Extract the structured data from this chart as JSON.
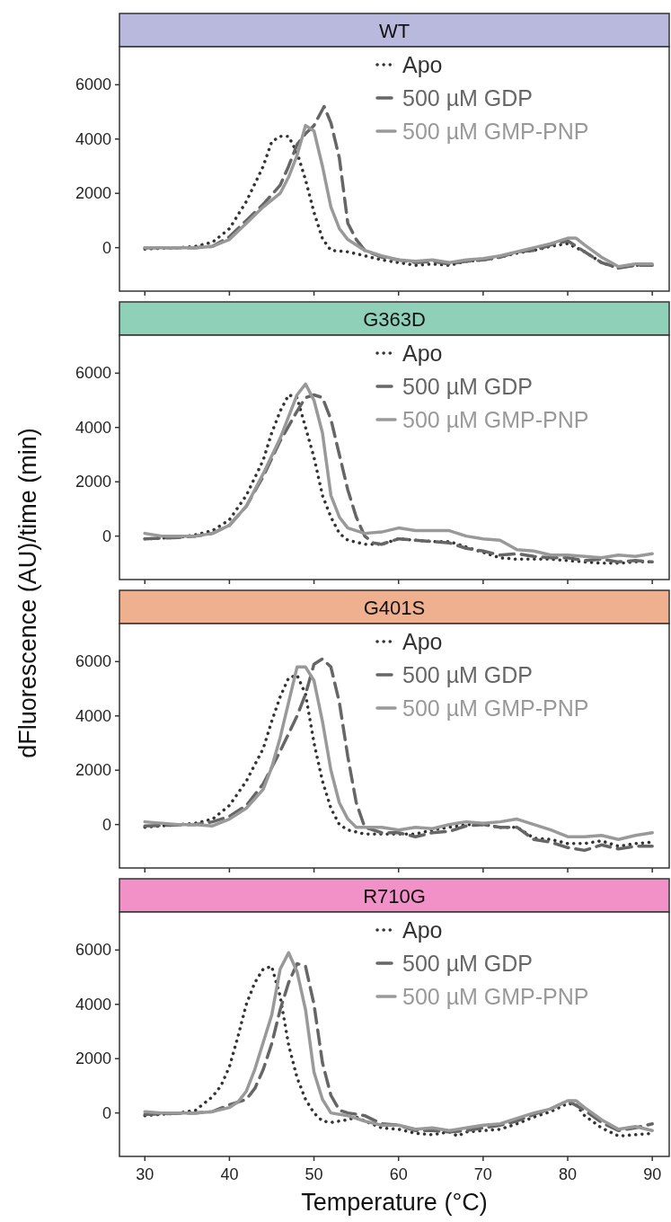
{
  "chart_data": [
    {
      "type": "line",
      "title": "WT",
      "ylabel": "dFluorescence (AU)/time (min)",
      "xlim": [
        27,
        92
      ],
      "xticks": [
        30,
        40,
        50,
        60,
        70,
        80,
        90
      ],
      "ylim": [
        -1600,
        7400
      ],
      "yticks": [
        0,
        2000,
        4000,
        6000
      ],
      "tick_labels": "y",
      "legend": "top right",
      "grid": false,
      "series": [
        {
          "name": "Apo",
          "color": "#333333",
          "line_style": "dotted",
          "x": [
            30,
            34,
            36,
            38,
            40,
            42,
            44,
            45,
            46,
            47,
            48,
            49,
            50,
            51,
            52,
            54,
            56,
            58,
            60,
            62,
            64,
            66,
            68,
            70,
            72,
            74,
            76,
            78,
            80,
            82,
            84,
            86,
            88,
            90
          ],
          "values": [
            -50,
            0,
            50,
            200,
            700,
            1700,
            3000,
            3900,
            4100,
            4100,
            3500,
            2500,
            1300,
            330,
            -100,
            -150,
            -300,
            -450,
            -550,
            -650,
            -600,
            -650,
            -500,
            -450,
            -350,
            -200,
            -100,
            50,
            150,
            -150,
            -550,
            -750,
            -650,
            -650
          ]
        },
        {
          "name": "500 µM GDP",
          "color": "#666666",
          "line_style": "dashed",
          "x": [
            30,
            36,
            38,
            40,
            42,
            44,
            46,
            47,
            48,
            49,
            50,
            51.2,
            52,
            53,
            54,
            55,
            56,
            58,
            60,
            62,
            64,
            66,
            68,
            70,
            72,
            74,
            76,
            78,
            80,
            82,
            84,
            86,
            88,
            90
          ],
          "values": [
            0,
            0,
            50,
            400,
            1000,
            1600,
            2300,
            3000,
            3800,
            4200,
            4500,
            5200,
            4600,
            3300,
            900,
            300,
            -100,
            -350,
            -450,
            -550,
            -500,
            -600,
            -500,
            -450,
            -350,
            -150,
            -100,
            100,
            250,
            -150,
            -550,
            -750,
            -650,
            -650
          ]
        },
        {
          "name": "500 µM GMP-PNP",
          "color": "#999999",
          "line_style": "solid",
          "x": [
            30,
            36,
            38,
            40,
            42,
            44,
            46,
            47,
            48,
            49,
            50,
            51,
            52,
            53,
            54,
            56,
            58,
            60,
            62,
            64,
            66,
            68,
            70,
            72,
            74,
            76,
            78,
            80,
            81,
            82,
            84,
            86,
            88,
            90
          ],
          "values": [
            0,
            0,
            50,
            300,
            900,
            1500,
            2000,
            2600,
            3400,
            4500,
            4300,
            3000,
            1500,
            700,
            300,
            -100,
            -300,
            -450,
            -500,
            -450,
            -550,
            -450,
            -400,
            -300,
            -150,
            0,
            150,
            350,
            350,
            100,
            -350,
            -700,
            -600,
            -600
          ]
        }
      ]
    },
    {
      "type": "line",
      "title": "G363D",
      "xlim": [
        27,
        92
      ],
      "xticks": [
        30,
        40,
        50,
        60,
        70,
        80,
        90
      ],
      "ylim": [
        -1600,
        7400
      ],
      "yticks": [
        0,
        2000,
        4000,
        6000
      ],
      "tick_labels": "y",
      "legend": "top right",
      "grid": false,
      "series": [
        {
          "name": "Apo",
          "color": "#333333",
          "line_style": "dotted",
          "x": [
            30,
            34,
            36,
            38,
            40,
            42,
            44,
            45,
            46,
            47,
            48,
            49,
            50,
            51,
            52,
            53,
            54,
            56,
            58,
            60,
            62,
            64,
            66,
            68,
            70,
            72,
            74,
            76,
            78,
            80,
            82,
            84,
            86,
            88,
            90
          ],
          "values": [
            -100,
            -50,
            50,
            200,
            600,
            1500,
            2800,
            3800,
            4600,
            5200,
            5100,
            4000,
            2900,
            1500,
            700,
            100,
            -150,
            -300,
            -300,
            -100,
            -150,
            -200,
            -200,
            -400,
            -600,
            -800,
            -850,
            -850,
            -850,
            -900,
            -950,
            -1000,
            -1000,
            -950,
            -950
          ]
        },
        {
          "name": "500 µM GDP",
          "color": "#666666",
          "line_style": "dashed",
          "x": [
            30,
            34,
            36,
            38,
            40,
            42,
            44,
            46,
            48,
            49,
            50,
            51,
            52,
            53,
            54,
            55,
            56,
            57,
            58,
            60,
            62,
            64,
            66,
            68,
            70,
            72,
            74,
            76,
            78,
            80,
            82,
            84,
            86,
            88,
            90
          ],
          "values": [
            -100,
            -50,
            0,
            100,
            400,
            1100,
            2200,
            3500,
            4600,
            5100,
            5200,
            5100,
            4300,
            3000,
            1700,
            700,
            0,
            -250,
            -300,
            -100,
            -150,
            -200,
            -250,
            -450,
            -550,
            -700,
            -650,
            -750,
            -800,
            -800,
            -900,
            -850,
            -950,
            -900,
            -950
          ]
        },
        {
          "name": "500 µM GMP-PNP",
          "color": "#999999",
          "line_style": "solid",
          "x": [
            30,
            32,
            36,
            38,
            40,
            42,
            44,
            46,
            47,
            48,
            49,
            50,
            51,
            52,
            53,
            54,
            56,
            58,
            60,
            62,
            64,
            66,
            68,
            70,
            72,
            74,
            76,
            78,
            80,
            82,
            84,
            86,
            88,
            90
          ],
          "values": [
            100,
            0,
            0,
            100,
            400,
            1100,
            2300,
            3600,
            4400,
            5200,
            5600,
            5000,
            3800,
            1500,
            700,
            300,
            100,
            150,
            300,
            200,
            200,
            200,
            0,
            -100,
            -150,
            -500,
            -550,
            -700,
            -700,
            -750,
            -800,
            -700,
            -750,
            -650
          ]
        }
      ]
    },
    {
      "type": "line",
      "title": "G401S",
      "xlim": [
        27,
        92
      ],
      "xticks": [
        30,
        40,
        50,
        60,
        70,
        80,
        90
      ],
      "ylim": [
        -1600,
        7400
      ],
      "yticks": [
        0,
        2000,
        4000,
        6000
      ],
      "tick_labels": "y",
      "legend": "top right",
      "grid": false,
      "series": [
        {
          "name": "Apo",
          "color": "#333333",
          "line_style": "dotted",
          "x": [
            30,
            34,
            36,
            38,
            40,
            42,
            44,
            45,
            46,
            47,
            48,
            49,
            50,
            51,
            52,
            53,
            54,
            56,
            58,
            60,
            62,
            64,
            66,
            68,
            70,
            72,
            74,
            76,
            78,
            80,
            82,
            84,
            86,
            88,
            90
          ],
          "values": [
            -100,
            0,
            50,
            200,
            700,
            1600,
            2800,
            3800,
            4700,
            5400,
            5500,
            4800,
            3000,
            1600,
            600,
            0,
            -200,
            -350,
            -350,
            -350,
            -350,
            -200,
            -100,
            0,
            0,
            -100,
            -100,
            -500,
            -550,
            -700,
            -700,
            -600,
            -800,
            -700,
            -650
          ]
        },
        {
          "name": "500 µM GDP",
          "color": "#666666",
          "line_style": "dashed",
          "x": [
            30,
            36,
            38,
            40,
            42,
            44,
            46,
            48,
            49,
            50,
            51,
            52,
            53,
            54,
            55,
            56,
            58,
            60,
            62,
            64,
            66,
            68,
            70,
            72,
            74,
            76,
            78,
            80,
            82,
            84,
            86,
            88,
            90
          ],
          "values": [
            -50,
            0,
            100,
            300,
            700,
            1500,
            2700,
            4000,
            4800,
            5900,
            6100,
            5800,
            4500,
            2500,
            800,
            -100,
            -300,
            -300,
            -450,
            -300,
            -250,
            -50,
            0,
            -100,
            -100,
            -550,
            -650,
            -850,
            -950,
            -750,
            -900,
            -800,
            -800
          ]
        },
        {
          "name": "500 µM GMP-PNP",
          "color": "#999999",
          "line_style": "solid",
          "x": [
            30,
            34,
            36,
            38,
            40,
            42,
            44,
            45,
            46,
            47,
            48,
            49,
            50,
            51,
            52,
            53,
            54,
            55,
            56,
            58,
            60,
            62,
            64,
            66,
            68,
            70,
            72,
            74,
            76,
            78,
            80,
            82,
            84,
            86,
            88,
            90
          ],
          "values": [
            100,
            0,
            0,
            -50,
            200,
            600,
            1300,
            2100,
            3200,
            4500,
            5800,
            5800,
            5300,
            3800,
            2000,
            800,
            200,
            -100,
            -100,
            -100,
            -200,
            -100,
            -150,
            0,
            100,
            50,
            100,
            200,
            0,
            -200,
            -450,
            -450,
            -400,
            -550,
            -400,
            -300
          ]
        }
      ]
    },
    {
      "type": "line",
      "title": "R710G",
      "xlabel": "Temperature (°C)",
      "xlim": [
        27,
        92
      ],
      "xticks": [
        30,
        40,
        50,
        60,
        70,
        80,
        90
      ],
      "ylim": [
        -1600,
        7400
      ],
      "yticks": [
        0,
        2000,
        4000,
        6000
      ],
      "legend": "top right",
      "grid": false,
      "series": [
        {
          "name": "Apo",
          "color": "#333333",
          "line_style": "dotted",
          "x": [
            30,
            34,
            36,
            38,
            39,
            40,
            41,
            42,
            43,
            44,
            45,
            46,
            47,
            48,
            49,
            50,
            51,
            52,
            54,
            55,
            56,
            58,
            60,
            62,
            64,
            66,
            67,
            68,
            70,
            72,
            74,
            76,
            78,
            80,
            81,
            82,
            84,
            86,
            88,
            90
          ],
          "values": [
            -100,
            0,
            100,
            600,
            1000,
            1700,
            2800,
            4000,
            4800,
            5300,
            5400,
            4300,
            2500,
            1300,
            500,
            0,
            -300,
            -350,
            -250,
            -150,
            -300,
            -550,
            -600,
            -750,
            -800,
            -700,
            -850,
            -700,
            -650,
            -600,
            -400,
            -150,
            50,
            350,
            300,
            -100,
            -550,
            -850,
            -800,
            -750
          ]
        },
        {
          "name": "500 µM GDP",
          "color": "#666666",
          "line_style": "dashed",
          "x": [
            30,
            36,
            38,
            40,
            42,
            43,
            44,
            45,
            46,
            47,
            48,
            49,
            50,
            51,
            52,
            53,
            54,
            56,
            58,
            60,
            62,
            64,
            66,
            68,
            70,
            72,
            74,
            76,
            78,
            80,
            82,
            84,
            86,
            88,
            90
          ],
          "values": [
            -50,
            0,
            50,
            300,
            500,
            900,
            1600,
            2550,
            3800,
            4800,
            5500,
            5400,
            4000,
            1850,
            650,
            100,
            0,
            -100,
            -400,
            -450,
            -650,
            -650,
            -700,
            -650,
            -550,
            -450,
            -300,
            -50,
            150,
            450,
            100,
            -350,
            -650,
            -550,
            -400
          ]
        },
        {
          "name": "500 µM GMP-PNP",
          "color": "#999999",
          "line_style": "solid",
          "x": [
            30,
            32,
            36,
            38,
            40,
            41,
            42,
            43,
            44,
            45,
            46,
            47,
            48,
            49,
            50,
            51,
            52,
            54,
            56,
            58,
            60,
            62,
            64,
            66,
            68,
            70,
            72,
            74,
            76,
            78,
            80,
            81,
            82,
            84,
            86,
            88,
            90
          ],
          "values": [
            50,
            0,
            0,
            50,
            200,
            400,
            800,
            1600,
            2600,
            3600,
            5300,
            5900,
            5200,
            3800,
            1500,
            500,
            0,
            -100,
            -300,
            -450,
            -450,
            -600,
            -550,
            -650,
            -550,
            -450,
            -400,
            -200,
            0,
            150,
            450,
            450,
            200,
            -250,
            -600,
            -500,
            -650
          ]
        }
      ]
    }
  ]
}
